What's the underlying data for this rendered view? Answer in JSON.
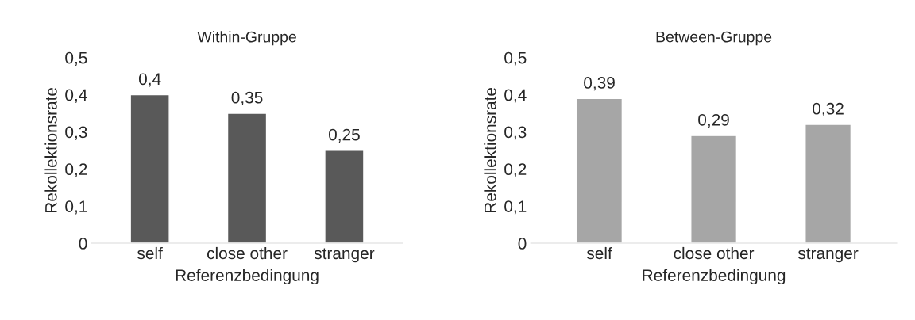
{
  "chart_data": [
    {
      "type": "bar",
      "title": "Within-Gruppe",
      "xlabel": "Referenzbedingung",
      "ylabel": "Rekollektionsrate",
      "categories": [
        "self",
        "close other",
        "stranger"
      ],
      "values": [
        0.4,
        0.35,
        0.25
      ],
      "color": "#595959",
      "value_labels": [
        "0,4",
        "0,35",
        "0,25"
      ],
      "ylim": [
        0,
        0.5
      ],
      "yticks": [
        {
          "value": 0,
          "label": "0"
        },
        {
          "value": 0.1,
          "label": "0,1"
        },
        {
          "value": 0.2,
          "label": "0,2"
        },
        {
          "value": 0.3,
          "label": "0,3"
        },
        {
          "value": 0.4,
          "label": "0,4"
        },
        {
          "value": 0.5,
          "label": "0,5"
        }
      ],
      "grid": false
    },
    {
      "type": "bar",
      "title": "Between-Gruppe",
      "xlabel": "Referenzbedingung",
      "ylabel": "Rekollektionsrate",
      "categories": [
        "self",
        "close other",
        "stranger"
      ],
      "values": [
        0.39,
        0.29,
        0.32
      ],
      "color": "#a6a6a6",
      "value_labels": [
        "0,39",
        "0,29",
        "0,32"
      ],
      "ylim": [
        0,
        0.5
      ],
      "yticks": [
        {
          "value": 0,
          "label": "0"
        },
        {
          "value": 0.1,
          "label": "0,1"
        },
        {
          "value": 0.2,
          "label": "0,2"
        },
        {
          "value": 0.3,
          "label": "0,3"
        },
        {
          "value": 0.4,
          "label": "0,4"
        },
        {
          "value": 0.5,
          "label": "0,5"
        }
      ],
      "grid": false
    }
  ]
}
